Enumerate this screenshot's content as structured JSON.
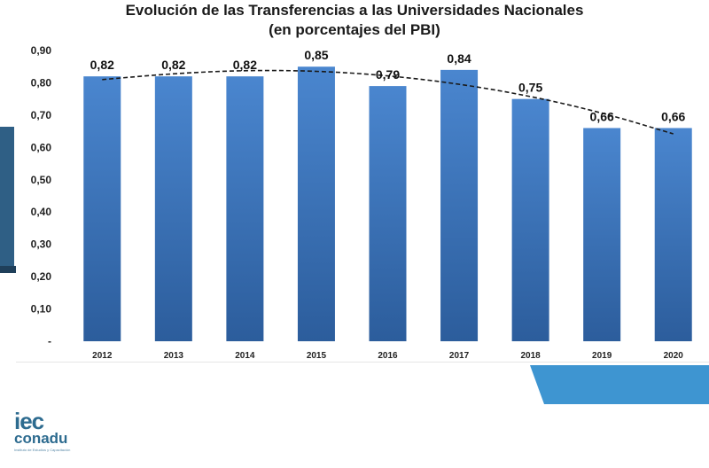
{
  "colors": {
    "bar_top": "#4a86cf",
    "bar_bottom": "#2c5d9c",
    "trend": "#1a1a1a",
    "accent": "#3e95d1"
  },
  "logo": {
    "line1": "iec",
    "line2": "conadu",
    "tagline": "Instituto de Estudios y Capacitación"
  },
  "chart_data": {
    "type": "bar",
    "title": "Evolución de las Transferencias a las Universidades Nacionales",
    "subtitle": "(en porcentajes del PBI)",
    "xlabel": "",
    "ylabel": "",
    "categories": [
      "2012",
      "2013",
      "2014",
      "2015",
      "2016",
      "2017",
      "2018",
      "2019",
      "2020"
    ],
    "values": [
      0.82,
      0.82,
      0.82,
      0.85,
      0.79,
      0.84,
      0.75,
      0.66,
      0.66
    ],
    "data_labels": [
      "0,82",
      "0,82",
      "0,82",
      "0,85",
      "0,79",
      "0,84",
      "0,75",
      "0,66",
      "0,66"
    ],
    "ylim": [
      0,
      0.9
    ],
    "yticks": [
      0,
      0.1,
      0.2,
      0.3,
      0.4,
      0.5,
      0.6,
      0.7,
      0.8,
      0.9
    ],
    "ytick_labels": [
      "-",
      "0,10",
      "0,20",
      "0,30",
      "0,40",
      "0,50",
      "0,60",
      "0,70",
      "0,80",
      "0,90"
    ],
    "trendline": "polynomial",
    "trend_values": [
      0.81,
      0.829,
      0.839,
      0.837,
      0.823,
      0.797,
      0.759,
      0.708,
      0.642
    ],
    "grid": false,
    "legend": "none"
  }
}
